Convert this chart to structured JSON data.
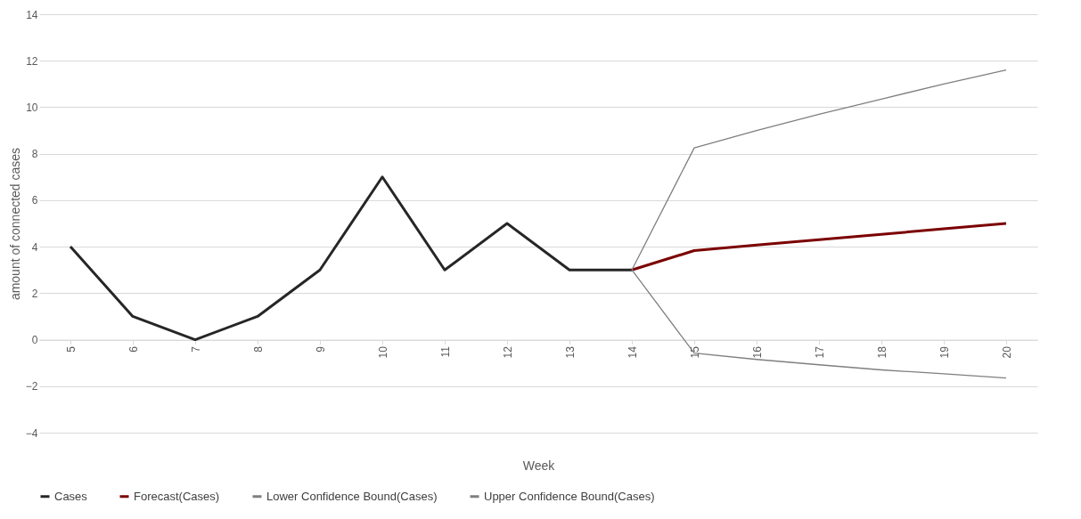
{
  "chart_data": {
    "type": "line",
    "xlabel": "Week",
    "ylabel": "amount of connected cases",
    "categories": [
      "5",
      "6",
      "7",
      "8",
      "9",
      "10",
      "11",
      "12",
      "13",
      "14",
      "15",
      "16",
      "17",
      "18",
      "19",
      "20"
    ],
    "series": [
      {
        "name": "Cases",
        "color": "#262626",
        "values": [
          4,
          1,
          0,
          1,
          3,
          7,
          3,
          5,
          3,
          3,
          null,
          null,
          null,
          null,
          null,
          null
        ]
      },
      {
        "name": "Forecast(Cases)",
        "color": "#7b0000",
        "values": [
          null,
          null,
          null,
          null,
          null,
          null,
          null,
          null,
          null,
          3,
          3.83,
          4.07,
          4.3,
          4.53,
          4.77,
          5
        ]
      },
      {
        "name": "Lower Confidence Bound(Cases)",
        "color": "#7f7f7f",
        "values": [
          null,
          null,
          null,
          null,
          null,
          null,
          null,
          null,
          null,
          3,
          -0.58,
          -0.85,
          -1.08,
          -1.3,
          -1.47,
          -1.65
        ]
      },
      {
        "name": "Upper Confidence Bound(Cases)",
        "color": "#7f7f7f",
        "values": [
          null,
          null,
          null,
          null,
          null,
          null,
          null,
          null,
          null,
          3,
          8.25,
          9.0,
          9.7,
          10.35,
          11.0,
          11.6
        ]
      }
    ],
    "ylim": [
      -4,
      14
    ],
    "yticks": [
      -4,
      -2,
      0,
      2,
      4,
      6,
      8,
      10,
      12,
      14
    ],
    "grid": "y",
    "legend": "bottom",
    "marker": "none",
    "line_style": "solid"
  }
}
